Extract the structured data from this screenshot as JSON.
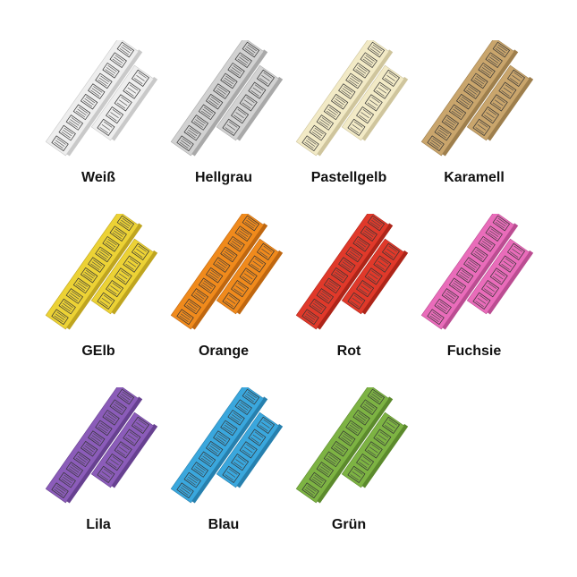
{
  "variants": [
    {
      "label": "Weiß",
      "color": "#eeeeee",
      "side": "#c9c9c9"
    },
    {
      "label": "Hellgrau",
      "color": "#d2d2d2",
      "side": "#a9a9a9"
    },
    {
      "label": "Pastellgelb",
      "color": "#f2eac6",
      "side": "#cfc59d"
    },
    {
      "label": "Karamell",
      "color": "#c9a56c",
      "side": "#9e7f4d"
    },
    {
      "label": "GElb",
      "color": "#ecd235",
      "side": "#bfa520"
    },
    {
      "label": "Orange",
      "color": "#f08a1c",
      "side": "#bf6710"
    },
    {
      "label": "Rot",
      "color": "#e0392a",
      "side": "#ad2519"
    },
    {
      "label": "Fuchsie",
      "color": "#e96cba",
      "side": "#bb4d92"
    },
    {
      "label": "Lila",
      "color": "#8b5cb9",
      "side": "#674190"
    },
    {
      "label": "Blau",
      "color": "#3aa7dd",
      "side": "#2780ae"
    },
    {
      "label": "Grün",
      "color": "#7db343",
      "side": "#5c8a2d"
    }
  ]
}
